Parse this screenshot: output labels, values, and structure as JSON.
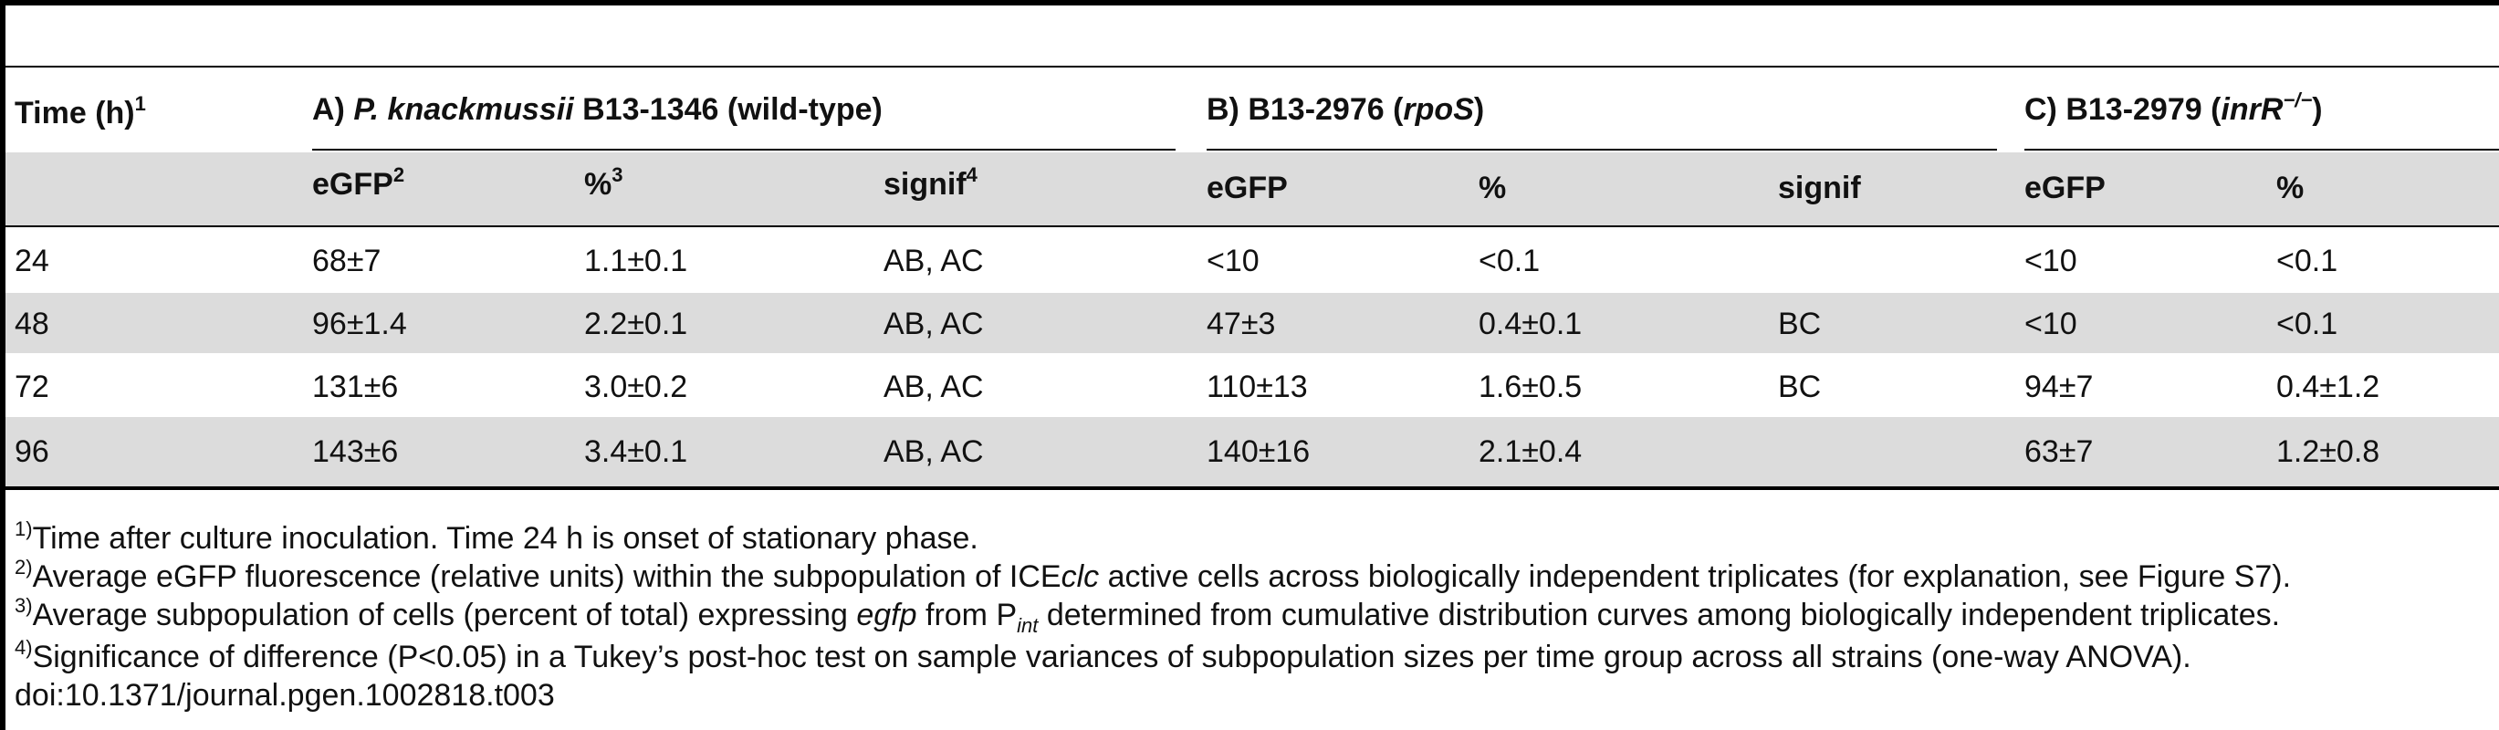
{
  "table": {
    "header": {
      "time": "Time (h)",
      "time_sup": "1",
      "group_a_prefix": "A)",
      "group_a_species": "P. knackmussii",
      "group_a_rest": "B13-1346 (wild-type)",
      "group_b_prefix": "B) B13-2976 (",
      "group_b_gene": "rpoS",
      "group_b_suffix": ")",
      "group_c_prefix": "C) B13-2979 (",
      "group_c_gene": "inrR",
      "group_c_sup": "−/−",
      "group_c_suffix": ")"
    },
    "subheader": {
      "a_egfp": "eGFP",
      "a_egfp_sup": "2",
      "a_pct": "%",
      "a_pct_sup": "3",
      "a_signif": "signif",
      "a_signif_sup": "4",
      "b_egfp": "eGFP",
      "b_pct": "%",
      "b_signif": "signif",
      "c_egfp": "eGFP",
      "c_pct": "%"
    },
    "rows": [
      {
        "time": "24",
        "a_egfp": "68±7",
        "a_pct": "1.1±0.1",
        "a_signif": "AB, AC",
        "b_egfp": "<10",
        "b_pct": "<0.1",
        "b_signif": "",
        "c_egfp": "<10",
        "c_pct": "<0.1"
      },
      {
        "time": "48",
        "a_egfp": "96±1.4",
        "a_pct": "2.2±0.1",
        "a_signif": "AB, AC",
        "b_egfp": "47±3",
        "b_pct": "0.4±0.1",
        "b_signif": "BC",
        "c_egfp": "<10",
        "c_pct": "<0.1"
      },
      {
        "time": "72",
        "a_egfp": "131±6",
        "a_pct": "3.0±0.2",
        "a_signif": "AB, AC",
        "b_egfp": "110±13",
        "b_pct": "1.6±0.5",
        "b_signif": "BC",
        "c_egfp": "94±7",
        "c_pct": "0.4±1.2"
      },
      {
        "time": "96",
        "a_egfp": "143±6",
        "a_pct": "3.4±0.1",
        "a_signif": "AB, AC",
        "b_egfp": "140±16",
        "b_pct": "2.1±0.4",
        "b_signif": "",
        "c_egfp": "63±7",
        "c_pct": "1.2±0.8"
      }
    ]
  },
  "footnotes": {
    "fn1_mark": "1)",
    "fn1_text": "Time after culture inoculation. Time 24 h is onset of stationary phase.",
    "fn2_mark": "2)",
    "fn2_text_a": "Average eGFP fluorescence (relative units) within the subpopulation of ICE",
    "fn2_text_it": "clc",
    "fn2_text_b": " active cells across biologically independent triplicates (for explanation, see Figure S7).",
    "fn3_mark": "3)",
    "fn3_text_a": "Average subpopulation of cells (percent of total) expressing ",
    "fn3_text_it": "egfp",
    "fn3_text_b": " from P",
    "fn3_text_sub": "int",
    "fn3_text_c": " determined from cumulative distribution curves among biologically independent triplicates.",
    "fn4_mark": "4)",
    "fn4_text": "Significance of difference (P<0.05) in a Tukey’s post-hoc test on sample variances of subpopulation sizes per time group across all strains (one-way ANOVA).",
    "doi": "doi:10.1371/journal.pgen.1002818.t003"
  }
}
